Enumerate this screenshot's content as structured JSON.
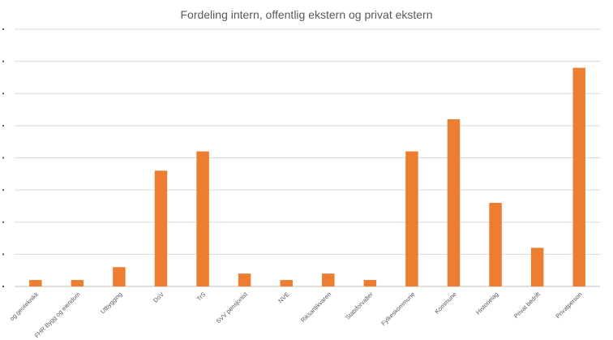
{
  "chart_data": {
    "type": "bar",
    "title": "Fordeling intern, offentlig ekstern og privat ekstern",
    "xlabel": "",
    "ylabel": "",
    "categories": [
      "og geoteknikk",
      "FHR Bygg og eiendom",
      "Utbygging",
      "DoV",
      "TrS",
      "SVV pensjonist",
      "NVE",
      "Riksantikvaren",
      "Statsforvalter",
      "Fylkeskommune",
      "Kommune",
      "Historielag",
      "Privat bedrift",
      "Privatperson"
    ],
    "values": [
      1,
      1,
      3,
      18,
      21,
      2,
      1,
      2,
      1,
      21,
      26,
      13,
      6,
      34
    ],
    "ylim": [
      0,
      40
    ],
    "yticks": [
      0,
      5,
      10,
      15,
      20,
      25,
      30,
      35,
      40
    ],
    "grid": true,
    "legend": "none",
    "bar_color": "#ed7d31"
  }
}
